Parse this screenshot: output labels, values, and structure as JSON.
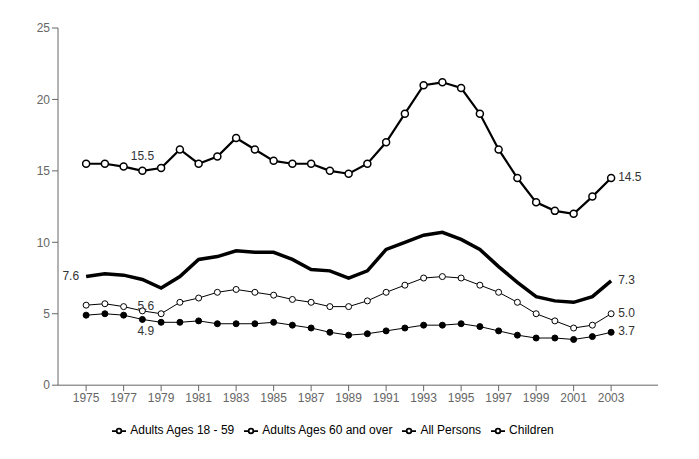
{
  "chart_data": {
    "type": "line",
    "x": [
      1975,
      1976,
      1977,
      1978,
      1979,
      1980,
      1981,
      1982,
      1983,
      1984,
      1985,
      1986,
      1987,
      1988,
      1989,
      1990,
      1991,
      1992,
      1993,
      1994,
      1995,
      1996,
      1997,
      1998,
      1999,
      2000,
      2001,
      2002,
      2003
    ],
    "series": [
      {
        "name": "Children",
        "color": "#000000",
        "marker": "open_circle",
        "line_style": "solid",
        "values": [
          15.5,
          15.5,
          15.3,
          15.0,
          15.2,
          16.5,
          15.5,
          16.0,
          17.3,
          16.5,
          15.7,
          15.5,
          15.5,
          15.0,
          14.8,
          15.5,
          17.0,
          19.0,
          21.0,
          21.2,
          20.8,
          19.0,
          16.5,
          14.5,
          12.8,
          12.2,
          12.0,
          13.2,
          14.5
        ]
      },
      {
        "name": "All Persons",
        "color": "#000000",
        "marker": "none",
        "line_style": "solid",
        "values": [
          7.6,
          7.8,
          7.7,
          7.4,
          6.8,
          7.6,
          8.8,
          9.0,
          9.4,
          9.3,
          9.3,
          8.8,
          8.1,
          8.0,
          7.5,
          8.0,
          9.5,
          10.0,
          10.5,
          10.7,
          10.2,
          9.5,
          8.3,
          7.2,
          6.2,
          5.9,
          5.8,
          6.2,
          7.3
        ]
      },
      {
        "name": "Adults Ages 18 - 59",
        "color": "#000000",
        "marker": "open_circle",
        "line_style": "solid",
        "values": [
          5.6,
          5.7,
          5.5,
          5.2,
          5.0,
          5.8,
          6.1,
          6.5,
          6.7,
          6.5,
          6.3,
          6.0,
          5.8,
          5.5,
          5.5,
          5.9,
          6.5,
          7.0,
          7.5,
          7.6,
          7.5,
          7.0,
          6.5,
          5.8,
          5.0,
          4.5,
          4.0,
          4.2,
          5.0
        ]
      },
      {
        "name": "Adults Ages 60 and over",
        "color": "#000000",
        "marker": "circle",
        "line_style": "solid",
        "values": [
          4.9,
          5.0,
          4.9,
          4.6,
          4.4,
          4.4,
          4.5,
          4.3,
          4.3,
          4.3,
          4.4,
          4.2,
          4.0,
          3.7,
          3.5,
          3.6,
          3.8,
          4.0,
          4.2,
          4.2,
          4.3,
          4.1,
          3.8,
          3.5,
          3.3,
          3.3,
          3.2,
          3.4,
          3.7
        ]
      }
    ],
    "annotations": [
      {
        "x": 1979,
        "y": 15.2,
        "text": "15.5"
      },
      {
        "x": 2003,
        "y": 14.5,
        "text": "14.5"
      },
      {
        "x": 1975,
        "y": 7.6,
        "text": "7.6"
      },
      {
        "x": 2003,
        "y": 7.3,
        "text": "7.3"
      },
      {
        "x": 1979,
        "y": 5.0,
        "text": "5.6"
      },
      {
        "x": 2003,
        "y": 5.0,
        "text": "5.0"
      },
      {
        "x": 1979,
        "y": 4.4,
        "text": "4.9"
      },
      {
        "x": 2003,
        "y": 3.7,
        "text": "3.7"
      }
    ],
    "xlim": [
      1973.5,
      2005.5
    ],
    "xticks": [
      1975,
      1977,
      1979,
      1981,
      1983,
      1985,
      1987,
      1989,
      1991,
      1993,
      1995,
      1997,
      1999,
      2001,
      2003
    ],
    "ylim": [
      0,
      25
    ],
    "yticks": [
      0,
      5,
      10,
      15,
      20,
      25
    ],
    "grid": false,
    "legend": "bottom"
  }
}
